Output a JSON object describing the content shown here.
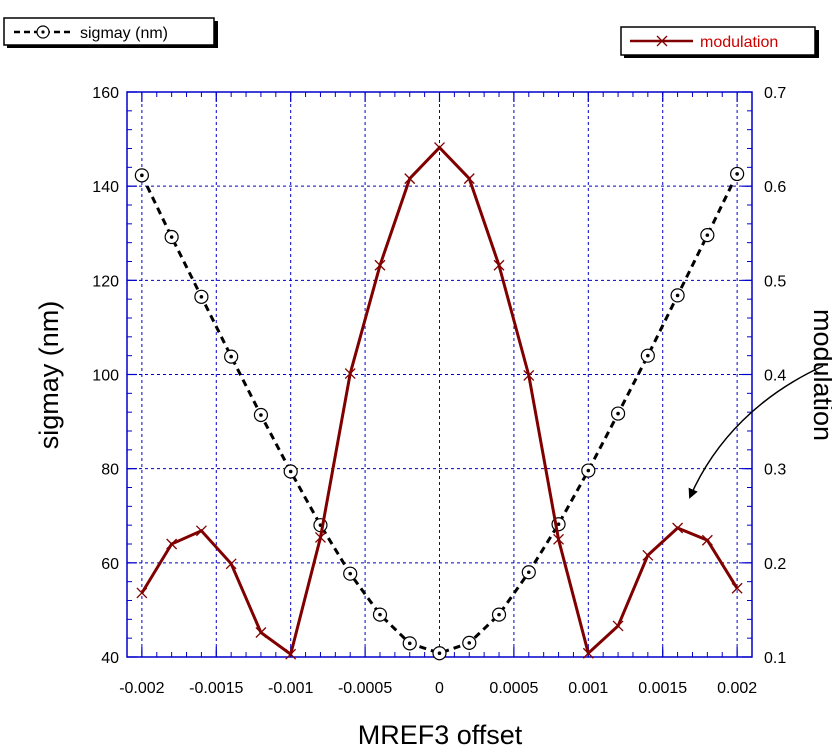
{
  "chart_data": {
    "type": "line",
    "xlabel": "MREF3 offset",
    "ylabel": "sigmay (nm)",
    "y2label": "modulation",
    "xlim": [
      -0.0021,
      0.0021
    ],
    "ylim": [
      40,
      160
    ],
    "y2lim": [
      0.1,
      0.7
    ],
    "xticks": [
      -0.002,
      -0.0015,
      -0.001,
      -0.0005,
      0,
      0.0005,
      0.001,
      0.0015,
      0.002
    ],
    "xtick_labels": [
      "-0.002",
      "-0.0015",
      "-0.001",
      "-0.0005",
      "0",
      "0.0005",
      "0.001",
      "0.0015",
      "0.002"
    ],
    "yticks": [
      40,
      60,
      80,
      100,
      120,
      140,
      160
    ],
    "ytick_labels": [
      "40",
      "60",
      "80",
      "100",
      "120",
      "140",
      "160"
    ],
    "y2ticks": [
      0.1,
      0.2,
      0.3,
      0.4,
      0.5,
      0.6,
      0.7
    ],
    "y2tick_labels": [
      "0.1",
      "0.2",
      "0.3",
      "0.4",
      "0.5",
      "0.6",
      "0.7"
    ],
    "grid": true,
    "series": [
      {
        "name": "sigmay (nm)",
        "axis": "left",
        "color": "#000000",
        "line_style": "dashed",
        "marker": "circle-dot",
        "x": [
          -0.002,
          -0.0018,
          -0.0016,
          -0.0014,
          -0.0012,
          -0.001,
          -0.0008,
          -0.0006,
          -0.0004,
          -0.0002,
          0,
          0.0002,
          0.0004,
          0.0006,
          0.0008,
          0.001,
          0.0012,
          0.0014,
          0.0016,
          0.0018,
          0.002
        ],
        "values": [
          142.3,
          129.2,
          116.5,
          103.8,
          91.4,
          79.4,
          68.0,
          57.7,
          49.0,
          42.9,
          40.8,
          43.0,
          49.0,
          58.0,
          68.2,
          79.6,
          91.7,
          104.0,
          116.8,
          129.6,
          142.6
        ]
      },
      {
        "name": "modulation",
        "axis": "right",
        "color": "#800000",
        "line_style": "solid",
        "marker": "x",
        "x": [
          -0.002,
          -0.0018,
          -0.0016,
          -0.0014,
          -0.0012,
          -0.001,
          -0.0008,
          -0.0006,
          -0.0004,
          -0.0002,
          0,
          0.0002,
          0.0004,
          0.0006,
          0.0008,
          0.001,
          0.0012,
          0.0014,
          0.0016,
          0.0018,
          0.002
        ],
        "values": [
          0.168,
          0.22,
          0.234,
          0.199,
          0.126,
          0.103,
          0.227,
          0.401,
          0.516,
          0.608,
          0.641,
          0.608,
          0.516,
          0.399,
          0.225,
          0.104,
          0.133,
          0.208,
          0.237,
          0.224,
          0.173
        ]
      }
    ],
    "annotation": {
      "type": "arrow",
      "points_to_series": "modulation",
      "points_to_x": 0.0016
    }
  }
}
